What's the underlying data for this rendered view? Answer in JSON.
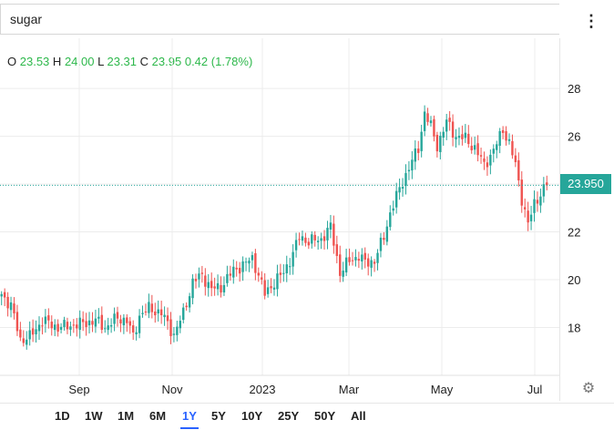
{
  "search": {
    "value": "sugar"
  },
  "menu": {
    "icon": "more-vertical-icon",
    "glyph": "⋮"
  },
  "ohlc": {
    "o_label": "O",
    "o": "23.53",
    "h_label": "H",
    "h": "24.00",
    "l_label": "L",
    "l": "23.31",
    "c_label": "C",
    "c": "23.95",
    "change": "0.42 (1.78%)"
  },
  "price_tag": "23.950",
  "settings": {
    "icon": "gear-icon",
    "glyph": "⚙"
  },
  "ranges": [
    {
      "label": "1D"
    },
    {
      "label": "1W"
    },
    {
      "label": "1M"
    },
    {
      "label": "6M"
    },
    {
      "label": "1Y",
      "active": true
    },
    {
      "label": "5Y"
    },
    {
      "label": "10Y"
    },
    {
      "label": "25Y"
    },
    {
      "label": "50Y"
    },
    {
      "label": "All"
    }
  ],
  "colors": {
    "up": "#26a69a",
    "down": "#ef5350",
    "active": "#2962ff",
    "grid": "#ececec"
  },
  "chart_data": {
    "type": "candlestick",
    "y_ticks": [
      18,
      20,
      22,
      24,
      26,
      28
    ],
    "y_tick_labels": [
      "18",
      "20",
      "22",
      "",
      "26",
      "28"
    ],
    "x_tick_labels": [
      "Sep",
      "Nov",
      "2023",
      "Mar",
      "May",
      "Jul"
    ],
    "last_price": 23.95,
    "ylim": [
      16.0,
      30.1
    ],
    "anchors": [
      [
        0,
        19.4
      ],
      [
        3,
        18.9
      ],
      [
        6,
        17.5
      ],
      [
        9,
        17.6
      ],
      [
        13,
        18.3
      ],
      [
        18,
        18.0
      ],
      [
        23,
        18.1
      ],
      [
        27,
        18.2
      ],
      [
        30,
        18.3
      ],
      [
        33,
        18.0
      ],
      [
        37,
        18.4
      ],
      [
        40,
        18.3
      ],
      [
        42,
        17.6
      ],
      [
        44,
        18.5
      ],
      [
        47,
        18.8
      ],
      [
        51,
        18.6
      ],
      [
        55,
        17.7
      ],
      [
        58,
        18.6
      ],
      [
        61,
        19.9
      ],
      [
        64,
        20.2
      ],
      [
        67,
        19.6
      ],
      [
        70,
        19.7
      ],
      [
        74,
        20.4
      ],
      [
        77,
        20.6
      ],
      [
        80,
        20.9
      ],
      [
        82,
        20.2
      ],
      [
        84,
        19.4
      ],
      [
        87,
        19.9
      ],
      [
        90,
        20.3
      ],
      [
        93,
        21.1
      ],
      [
        95,
        21.8
      ],
      [
        98,
        21.6
      ],
      [
        102,
        21.7
      ],
      [
        105,
        22.2
      ],
      [
        108,
        20.3
      ],
      [
        111,
        20.8
      ],
      [
        114,
        21.0
      ],
      [
        116,
        20.7
      ],
      [
        119,
        20.8
      ],
      [
        122,
        21.8
      ],
      [
        124,
        22.8
      ],
      [
        127,
        23.8
      ],
      [
        130,
        24.7
      ],
      [
        133,
        25.5
      ],
      [
        135,
        27.0
      ],
      [
        137,
        26.4
      ],
      [
        139,
        25.6
      ],
      [
        142,
        26.6
      ],
      [
        145,
        26.0
      ],
      [
        148,
        25.9
      ],
      [
        151,
        25.5
      ],
      [
        154,
        24.8
      ],
      [
        157,
        25.4
      ],
      [
        160,
        26.3
      ],
      [
        162,
        25.7
      ],
      [
        164,
        24.8
      ],
      [
        166,
        23.4
      ],
      [
        168,
        22.3
      ],
      [
        170,
        23.2
      ],
      [
        172,
        23.6
      ],
      [
        174,
        23.95
      ]
    ]
  }
}
